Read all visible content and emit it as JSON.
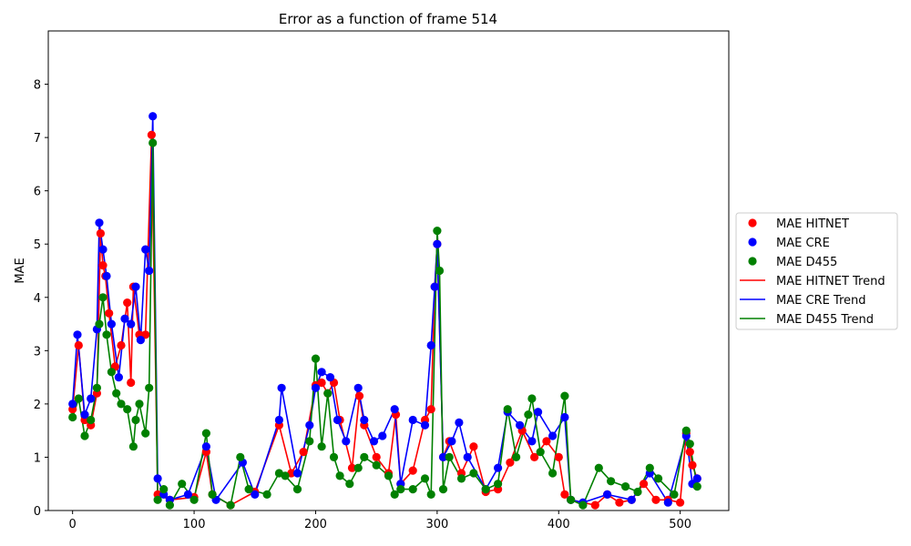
{
  "chart_data": {
    "type": "line",
    "title": "Error as a function of frame 514",
    "xlabel": "",
    "ylabel": "MAE",
    "xlim": [
      -20,
      540
    ],
    "ylim": [
      0,
      9
    ],
    "xticks": [
      0,
      100,
      200,
      300,
      400,
      500
    ],
    "yticks": [
      0,
      1,
      2,
      3,
      4,
      5,
      6,
      7,
      8
    ],
    "grid": false,
    "legend_placement": "right",
    "legend": [
      "MAE HITNET",
      "MAE CRE",
      "MAE D455",
      "MAE HITNET Trend",
      "MAE CRE Trend",
      "MAE D455 Trend"
    ],
    "series": [
      {
        "name": "MAE HITNET",
        "color": "#ff0000",
        "kind": "scatter",
        "x": [
          0,
          5,
          10,
          15,
          20,
          23,
          25,
          27,
          30,
          35,
          40,
          45,
          48,
          50,
          55,
          60,
          65,
          70,
          80,
          100,
          110,
          115,
          130,
          150,
          170,
          180,
          190,
          200,
          205,
          210,
          215,
          220,
          230,
          236,
          240,
          250,
          260,
          266,
          270,
          280,
          290,
          295,
          298,
          300,
          305,
          310,
          320,
          330,
          340,
          350,
          360,
          370,
          380,
          390,
          400,
          405,
          410,
          430,
          440,
          450,
          460,
          470,
          480,
          490,
          500,
          505,
          508,
          510,
          514
        ],
        "y": [
          1.9,
          3.1,
          1.7,
          1.6,
          2.2,
          5.2,
          4.6,
          4.4,
          3.7,
          2.7,
          3.1,
          3.9,
          2.4,
          4.2,
          3.3,
          3.3,
          7.05,
          0.3,
          0.2,
          0.25,
          1.1,
          0.3,
          0.1,
          0.35,
          1.6,
          0.7,
          1.1,
          2.35,
          2.4,
          2.2,
          2.4,
          1.7,
          0.8,
          2.15,
          1.6,
          1.0,
          0.7,
          1.8,
          0.5,
          0.75,
          1.7,
          1.9,
          4.2,
          5.0,
          1.0,
          1.3,
          0.7,
          1.2,
          0.35,
          0.4,
          0.9,
          1.5,
          1.0,
          1.3,
          1.0,
          0.3,
          0.2,
          0.1,
          0.3,
          0.15,
          0.2,
          0.5,
          0.2,
          0.2,
          0.15,
          1.45,
          1.1,
          0.85,
          0.6
        ]
      },
      {
        "name": "MAE CRE",
        "color": "#0000ff",
        "kind": "scatter",
        "x": [
          0,
          4,
          10,
          15,
          20,
          22,
          25,
          28,
          32,
          38,
          43,
          48,
          52,
          56,
          60,
          63,
          66,
          70,
          75,
          80,
          95,
          110,
          118,
          140,
          150,
          170,
          172,
          185,
          195,
          200,
          205,
          212,
          218,
          225,
          235,
          240,
          248,
          255,
          265,
          270,
          280,
          290,
          295,
          298,
          300,
          305,
          312,
          318,
          325,
          340,
          350,
          358,
          368,
          378,
          383,
          395,
          405,
          410,
          420,
          440,
          460,
          475,
          490,
          505,
          510,
          514
        ],
        "y": [
          2.0,
          3.3,
          1.8,
          2.1,
          3.4,
          5.4,
          4.9,
          4.4,
          3.5,
          2.5,
          3.6,
          3.5,
          4.2,
          3.2,
          4.9,
          4.5,
          7.4,
          0.6,
          0.3,
          0.2,
          0.3,
          1.2,
          0.2,
          0.9,
          0.3,
          1.7,
          2.3,
          0.7,
          1.6,
          2.3,
          2.6,
          2.5,
          1.7,
          1.3,
          2.3,
          1.7,
          1.3,
          1.4,
          1.9,
          0.5,
          1.7,
          1.6,
          3.1,
          4.2,
          5.0,
          1.0,
          1.3,
          1.65,
          1.0,
          0.4,
          0.8,
          1.85,
          1.6,
          1.3,
          1.85,
          1.4,
          1.75,
          0.2,
          0.15,
          0.3,
          0.2,
          0.7,
          0.15,
          1.4,
          0.5,
          0.6
        ]
      },
      {
        "name": "MAE D455",
        "color": "#008000",
        "kind": "scatter",
        "x": [
          0,
          5,
          10,
          15,
          20,
          22,
          25,
          28,
          32,
          36,
          40,
          45,
          50,
          52,
          55,
          60,
          63,
          66,
          70,
          75,
          80,
          90,
          100,
          110,
          115,
          130,
          138,
          145,
          160,
          170,
          175,
          185,
          195,
          200,
          205,
          210,
          215,
          220,
          228,
          235,
          240,
          250,
          260,
          265,
          270,
          280,
          290,
          295,
          300,
          302,
          305,
          310,
          320,
          330,
          340,
          350,
          358,
          365,
          375,
          378,
          385,
          395,
          405,
          410,
          420,
          433,
          443,
          455,
          465,
          475,
          482,
          495,
          505,
          508,
          514
        ],
        "y": [
          1.75,
          2.1,
          1.4,
          1.7,
          2.3,
          3.5,
          4.0,
          3.3,
          2.6,
          2.2,
          2.0,
          1.9,
          1.2,
          1.7,
          2.0,
          1.45,
          2.3,
          6.9,
          0.2,
          0.4,
          0.1,
          0.5,
          0.2,
          1.45,
          0.3,
          0.1,
          1.0,
          0.4,
          0.3,
          0.7,
          0.65,
          0.4,
          1.3,
          2.85,
          1.2,
          2.2,
          1.0,
          0.65,
          0.5,
          0.8,
          1.0,
          0.85,
          0.65,
          0.3,
          0.4,
          0.4,
          0.6,
          0.3,
          5.25,
          4.5,
          0.4,
          1.0,
          0.6,
          0.7,
          0.4,
          0.5,
          1.9,
          1.0,
          1.8,
          2.1,
          1.1,
          0.7,
          2.15,
          0.2,
          0.1,
          0.8,
          0.55,
          0.45,
          0.35,
          0.8,
          0.6,
          0.3,
          1.5,
          1.25,
          0.45
        ]
      }
    ]
  }
}
